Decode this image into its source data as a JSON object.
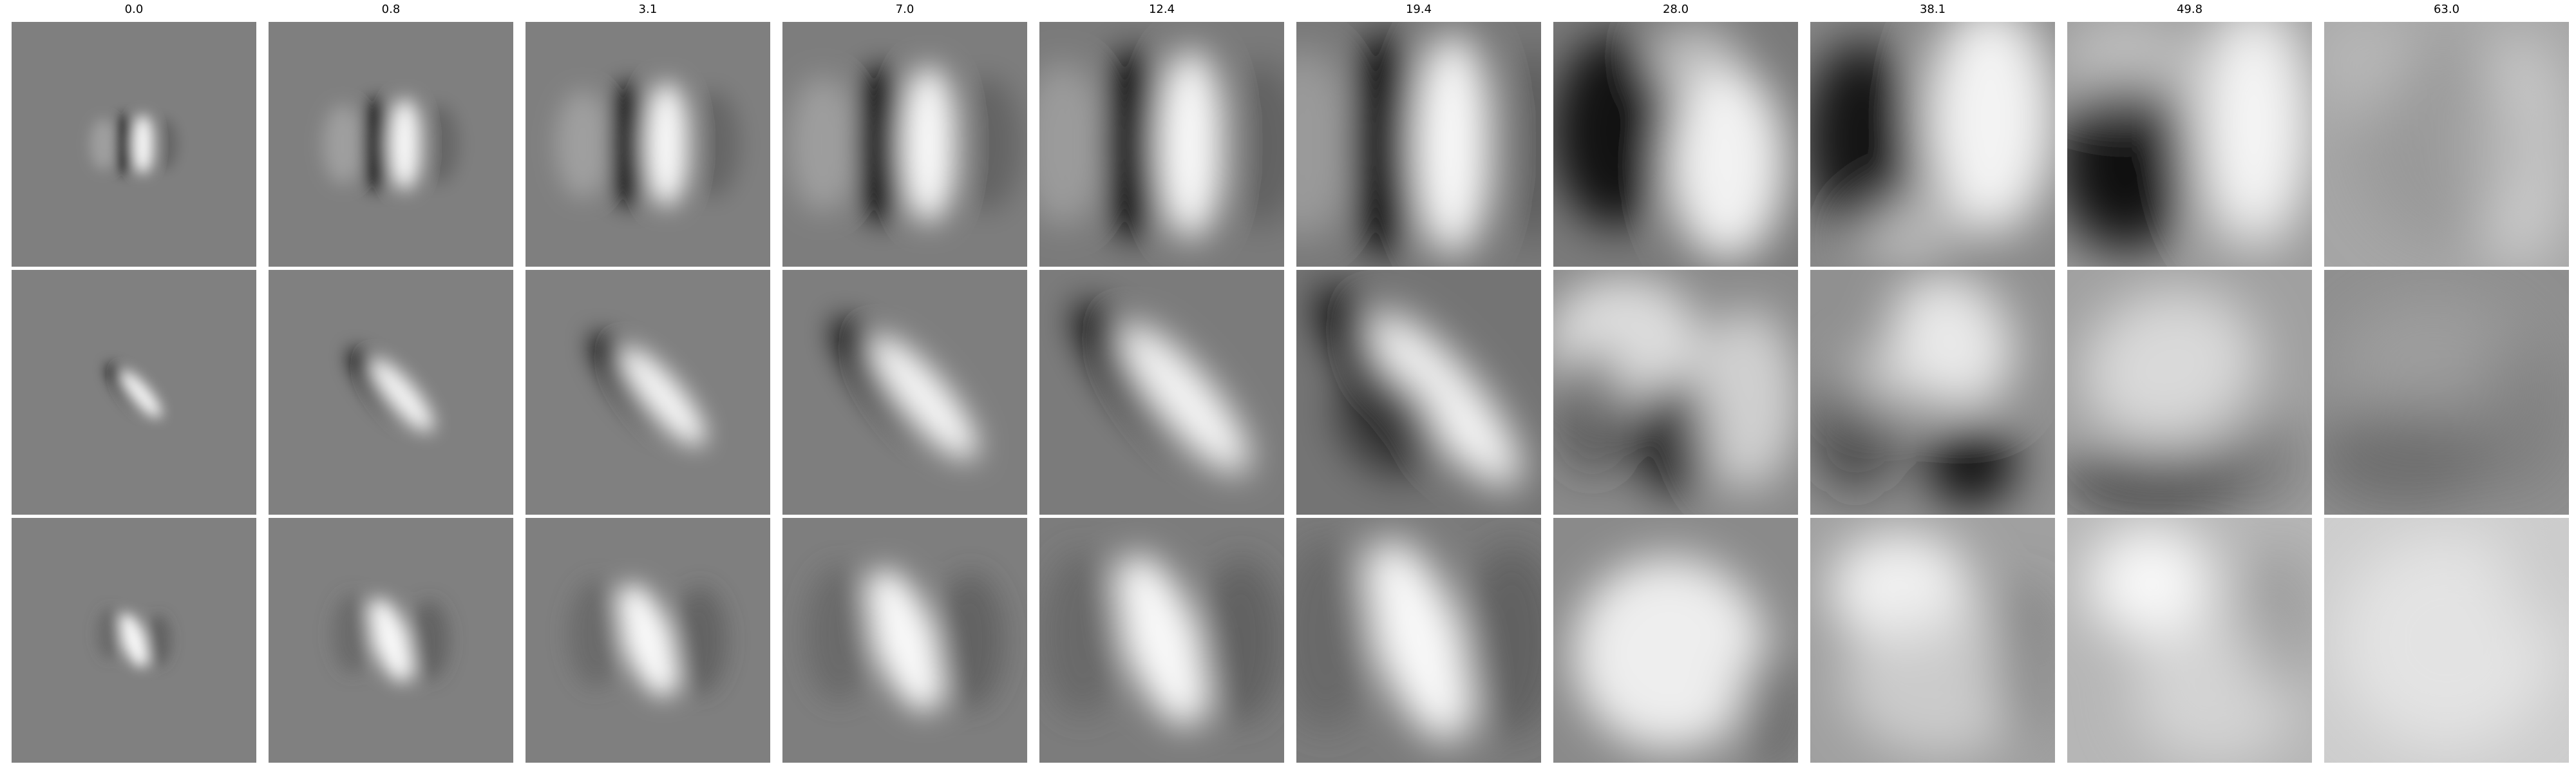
{
  "figure": {
    "column_labels": [
      "0.0",
      "0.8",
      "3.1",
      "7.0",
      "12.4",
      "19.4",
      "28.0",
      "38.1",
      "49.8",
      "63.0"
    ],
    "row_count": 3,
    "colors": {
      "background": "#ffffff",
      "label": "#000000"
    },
    "tile_bases": [
      [
        "#7f7f7f",
        "#7f7f7f",
        "#7f7f7f",
        "#7d7d7d",
        "#7a7a7a",
        "#787878",
        "#7a7a7a",
        "#888888",
        "#9a9a9a",
        "#a6a6a6"
      ],
      [
        "#808080",
        "#808080",
        "#808080",
        "#7e7e7e",
        "#7b7b7b",
        "#747474",
        "#8a8a8a",
        "#909090",
        "#a0a0a0",
        "#8f8f8f"
      ],
      [
        "#808080",
        "#808080",
        "#7f7f7f",
        "#7e7e7e",
        "#7c7c7c",
        "#7b7b7b",
        "#8a8a8a",
        "#a0a0a0",
        "#b6b6b6",
        "#cdcdcd"
      ]
    ]
  }
}
